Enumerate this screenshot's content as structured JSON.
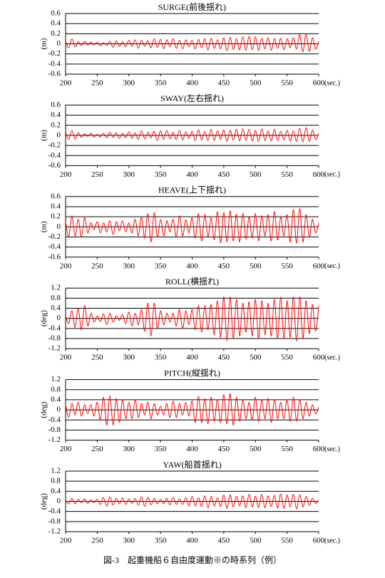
{
  "chart_data": [
    {
      "type": "line",
      "title": "SURGE(前後揺れ)",
      "xlabel": "(sec.)",
      "ylabel": "(m)",
      "xlim": [
        200,
        600
      ],
      "xticks": [
        200,
        250,
        300,
        350,
        400,
        450,
        500,
        550,
        600
      ],
      "ylim": [
        -0.6,
        0.6
      ],
      "yticks": [
        0.6,
        0.4,
        0.2,
        0,
        -0.2,
        -0.4,
        -0.6
      ],
      "grid": true,
      "color": "#ff0000",
      "x": [
        200,
        205,
        210,
        215,
        220,
        225,
        230,
        235,
        240,
        245,
        250,
        255,
        260,
        265,
        270,
        275,
        280,
        285,
        290,
        295,
        300,
        305,
        310,
        315,
        320,
        325,
        330,
        335,
        340,
        345,
        350,
        355,
        360,
        365,
        370,
        375,
        380,
        385,
        390,
        395,
        400,
        405,
        410,
        415,
        420,
        425,
        430,
        435,
        440,
        445,
        450,
        455,
        460,
        465,
        470,
        475,
        480,
        485,
        490,
        495,
        500,
        505,
        510,
        515,
        520,
        525,
        530,
        535,
        540,
        545,
        550,
        555,
        560,
        565,
        570,
        575,
        580,
        585,
        590,
        595,
        600
      ],
      "values": [
        0.05,
        -0.08,
        0.1,
        -0.06,
        0.04,
        -0.03,
        0.05,
        -0.02,
        0.03,
        -0.02,
        0.03,
        -0.04,
        0.02,
        -0.03,
        0.05,
        -0.07,
        0.06,
        -0.05,
        0.04,
        -0.06,
        0.07,
        -0.05,
        0.08,
        -0.09,
        0.07,
        -0.05,
        0.06,
        -0.08,
        0.1,
        -0.07,
        0.09,
        -0.1,
        0.08,
        -0.06,
        0.1,
        -0.09,
        0.07,
        -0.1,
        0.08,
        -0.06,
        0.07,
        -0.1,
        0.09,
        -0.08,
        0.1,
        -0.12,
        0.11,
        -0.09,
        0.08,
        -0.1,
        0.12,
        -0.14,
        0.13,
        -0.11,
        0.1,
        -0.12,
        0.14,
        -0.13,
        0.15,
        -0.12,
        0.14,
        -0.13,
        0.11,
        -0.1,
        0.12,
        -0.13,
        0.1,
        -0.09,
        0.11,
        -0.12,
        0.1,
        -0.08,
        0.12,
        -0.1,
        0.18,
        -0.16,
        0.2,
        -0.15,
        0.12,
        -0.1,
        0.05
      ]
    },
    {
      "type": "line",
      "title": "SWAY(左右揺れ)",
      "xlabel": "(sec.)",
      "ylabel": "(m)",
      "xlim": [
        200,
        600
      ],
      "xticks": [
        200,
        250,
        300,
        350,
        400,
        450,
        500,
        550,
        600
      ],
      "ylim": [
        -0.6,
        0.6
      ],
      "yticks": [
        0.6,
        0.4,
        0.2,
        0,
        -0.2,
        -0.4,
        -0.6
      ],
      "grid": true,
      "color": "#ff0000",
      "x": [
        200,
        205,
        210,
        215,
        220,
        225,
        230,
        235,
        240,
        245,
        250,
        255,
        260,
        265,
        270,
        275,
        280,
        285,
        290,
        295,
        300,
        305,
        310,
        315,
        320,
        325,
        330,
        335,
        340,
        345,
        350,
        355,
        360,
        365,
        370,
        375,
        380,
        385,
        390,
        395,
        400,
        405,
        410,
        415,
        420,
        425,
        430,
        435,
        440,
        445,
        450,
        455,
        460,
        465,
        470,
        475,
        480,
        485,
        490,
        495,
        500,
        505,
        510,
        515,
        520,
        525,
        530,
        535,
        540,
        545,
        550,
        555,
        560,
        565,
        570,
        575,
        580,
        585,
        590,
        595,
        600
      ],
      "values": [
        0.06,
        -0.08,
        0.1,
        -0.07,
        0.05,
        -0.04,
        0.03,
        -0.02,
        0.04,
        -0.03,
        0.02,
        -0.03,
        0.04,
        -0.05,
        0.06,
        -0.04,
        0.05,
        -0.06,
        0.04,
        -0.05,
        0.07,
        -0.06,
        0.05,
        -0.08,
        0.09,
        -0.07,
        0.06,
        -0.05,
        0.08,
        -0.1,
        0.09,
        -0.08,
        0.1,
        -0.07,
        0.06,
        -0.08,
        0.1,
        -0.09,
        0.07,
        -0.06,
        0.08,
        -0.1,
        0.11,
        -0.09,
        0.08,
        -0.1,
        0.12,
        -0.1,
        0.09,
        -0.08,
        0.11,
        -0.12,
        0.1,
        -0.09,
        0.12,
        -0.11,
        0.13,
        -0.1,
        0.12,
        -0.11,
        0.1,
        -0.12,
        0.13,
        -0.1,
        0.09,
        -0.11,
        0.12,
        -0.1,
        0.08,
        -0.09,
        0.1,
        -0.11,
        0.09,
        -0.12,
        0.14,
        -0.13,
        0.15,
        -0.12,
        0.1,
        -0.08,
        0.04
      ]
    },
    {
      "type": "line",
      "title": "HEAVE(上下揺れ)",
      "xlabel": "(sec.)",
      "ylabel": "(m)",
      "xlim": [
        200,
        600
      ],
      "xticks": [
        200,
        250,
        300,
        350,
        400,
        450,
        500,
        550,
        600
      ],
      "ylim": [
        -0.6,
        0.6
      ],
      "yticks": [
        0.6,
        0.4,
        0.2,
        0,
        -0.2,
        -0.4,
        -0.6
      ],
      "grid": true,
      "color": "#ff0000",
      "x": [
        200,
        205,
        210,
        215,
        220,
        225,
        230,
        235,
        240,
        245,
        250,
        255,
        260,
        265,
        270,
        275,
        280,
        285,
        290,
        295,
        300,
        305,
        310,
        315,
        320,
        325,
        330,
        335,
        340,
        345,
        350,
        355,
        360,
        365,
        370,
        375,
        380,
        385,
        390,
        395,
        400,
        405,
        410,
        415,
        420,
        425,
        430,
        435,
        440,
        445,
        450,
        455,
        460,
        465,
        470,
        475,
        480,
        485,
        490,
        495,
        500,
        505,
        510,
        515,
        520,
        525,
        530,
        535,
        540,
        545,
        550,
        555,
        560,
        565,
        570,
        575,
        580,
        585,
        590,
        595,
        600
      ],
      "values": [
        0.1,
        -0.2,
        0.22,
        -0.18,
        0.15,
        -0.2,
        0.18,
        -0.12,
        0.08,
        -0.06,
        0.1,
        -0.12,
        0.08,
        -0.1,
        0.12,
        -0.15,
        0.1,
        -0.08,
        0.12,
        -0.1,
        0.08,
        -0.12,
        0.15,
        -0.18,
        0.2,
        -0.22,
        0.26,
        -0.3,
        0.28,
        -0.2,
        0.15,
        -0.18,
        0.12,
        -0.1,
        0.15,
        -0.2,
        0.22,
        -0.18,
        0.14,
        -0.12,
        0.18,
        -0.22,
        0.26,
        -0.28,
        0.24,
        -0.2,
        0.18,
        -0.25,
        0.3,
        -0.32,
        0.28,
        -0.3,
        0.32,
        -0.28,
        0.25,
        -0.3,
        0.27,
        -0.24,
        0.2,
        -0.22,
        0.26,
        -0.28,
        0.22,
        -0.18,
        0.24,
        -0.28,
        0.3,
        -0.26,
        0.2,
        -0.18,
        0.24,
        -0.3,
        0.34,
        -0.32,
        0.36,
        -0.3,
        0.24,
        -0.2,
        0.15,
        -0.12,
        0.08
      ]
    },
    {
      "type": "line",
      "title": "ROLL(横揺れ)",
      "xlabel": "(sec.)",
      "ylabel": "(deg)",
      "xlim": [
        200,
        600
      ],
      "xticks": [
        200,
        250,
        300,
        350,
        400,
        450,
        500,
        550,
        600
      ],
      "ylim": [
        -1.2,
        1.2
      ],
      "yticks": [
        1.2,
        0.8,
        0.4,
        0,
        -0.4,
        -0.8,
        -1.2
      ],
      "grid": true,
      "color": "#ff0000",
      "x": [
        200,
        205,
        210,
        215,
        220,
        225,
        230,
        235,
        240,
        245,
        250,
        255,
        260,
        265,
        270,
        275,
        280,
        285,
        290,
        295,
        300,
        305,
        310,
        315,
        320,
        325,
        330,
        335,
        340,
        345,
        350,
        355,
        360,
        365,
        370,
        375,
        380,
        385,
        390,
        395,
        400,
        405,
        410,
        415,
        420,
        425,
        430,
        435,
        440,
        445,
        450,
        455,
        460,
        465,
        470,
        475,
        480,
        485,
        490,
        495,
        500,
        505,
        510,
        515,
        520,
        525,
        530,
        535,
        540,
        545,
        550,
        555,
        560,
        565,
        570,
        575,
        580,
        585,
        590,
        595,
        600
      ],
      "values": [
        0.1,
        -0.2,
        0.3,
        -0.35,
        0.4,
        -0.45,
        0.5,
        -0.3,
        0.2,
        -0.15,
        0.1,
        -0.12,
        0.18,
        -0.25,
        0.2,
        -0.15,
        0.1,
        -0.08,
        0.15,
        -0.2,
        0.25,
        -0.3,
        0.2,
        -0.25,
        0.35,
        -0.5,
        0.6,
        -0.7,
        0.6,
        -0.4,
        0.3,
        -0.25,
        0.2,
        -0.15,
        0.2,
        -0.3,
        0.35,
        -0.4,
        0.3,
        -0.25,
        0.35,
        -0.45,
        0.5,
        -0.55,
        0.5,
        -0.45,
        0.55,
        -0.65,
        0.7,
        -0.75,
        0.85,
        -0.9,
        0.85,
        -0.8,
        0.75,
        -0.7,
        0.6,
        -0.55,
        0.65,
        -0.7,
        0.75,
        -0.8,
        0.7,
        -0.65,
        0.6,
        -0.7,
        0.75,
        -0.8,
        0.85,
        -0.8,
        0.7,
        -0.75,
        0.85,
        -0.9,
        0.85,
        -0.8,
        0.7,
        -0.6,
        0.55,
        -0.5,
        0.5
      ]
    },
    {
      "type": "line",
      "title": "PITCH(縦揺れ)",
      "xlabel": "(sec.)",
      "ylabel": "(deg)",
      "xlim": [
        200,
        600
      ],
      "xticks": [
        200,
        250,
        300,
        350,
        400,
        450,
        500,
        550,
        600
      ],
      "ylim": [
        -1.2,
        1.2
      ],
      "yticks": [
        1.2,
        0.8,
        0.4,
        0,
        -0.4,
        -0.8,
        -1.2
      ],
      "grid": true,
      "color": "#ff0000",
      "x": [
        200,
        205,
        210,
        215,
        220,
        225,
        230,
        235,
        240,
        245,
        250,
        255,
        260,
        265,
        270,
        275,
        280,
        285,
        290,
        295,
        300,
        305,
        310,
        315,
        320,
        325,
        330,
        335,
        340,
        345,
        350,
        355,
        360,
        365,
        370,
        375,
        380,
        385,
        390,
        395,
        400,
        405,
        410,
        415,
        420,
        425,
        430,
        435,
        440,
        445,
        450,
        455,
        460,
        465,
        470,
        475,
        480,
        485,
        490,
        495,
        500,
        505,
        510,
        515,
        520,
        525,
        530,
        535,
        540,
        545,
        550,
        555,
        560,
        565,
        570,
        575,
        580,
        585,
        590,
        595,
        600
      ],
      "values": [
        0.2,
        -0.3,
        0.25,
        -0.2,
        0.3,
        -0.25,
        0.2,
        -0.15,
        0.2,
        -0.25,
        0.3,
        -0.4,
        0.5,
        -0.6,
        0.55,
        -0.6,
        0.45,
        -0.5,
        0.4,
        -0.35,
        0.3,
        -0.35,
        0.4,
        -0.3,
        0.25,
        -0.2,
        0.3,
        -0.35,
        0.25,
        -0.2,
        0.15,
        -0.2,
        0.25,
        -0.3,
        0.35,
        -0.3,
        0.25,
        -0.2,
        0.3,
        -0.25,
        0.35,
        -0.5,
        0.55,
        -0.5,
        0.45,
        -0.55,
        0.5,
        -0.45,
        0.4,
        -0.5,
        0.6,
        -0.55,
        0.65,
        -0.6,
        0.5,
        -0.45,
        0.4,
        -0.35,
        0.3,
        -0.4,
        0.5,
        -0.45,
        0.4,
        -0.35,
        0.45,
        -0.5,
        0.4,
        -0.35,
        0.3,
        -0.35,
        0.4,
        -0.45,
        0.5,
        -0.45,
        0.4,
        -0.35,
        0.3,
        -0.25,
        0.2,
        -0.15,
        0.1
      ]
    },
    {
      "type": "line",
      "title": "YAW(船首揺れ)",
      "xlabel": "(sec.)",
      "ylabel": "(deg)",
      "xlim": [
        200,
        600
      ],
      "xticks": [
        200,
        250,
        300,
        350,
        400,
        450,
        500,
        550,
        600
      ],
      "ylim": [
        -1.2,
        1.2
      ],
      "yticks": [
        1.2,
        0.8,
        0.4,
        0,
        -0.4,
        -0.8,
        -1.2
      ],
      "grid": true,
      "color": "#ff0000",
      "x": [
        200,
        205,
        210,
        215,
        220,
        225,
        230,
        235,
        240,
        245,
        250,
        255,
        260,
        265,
        270,
        275,
        280,
        285,
        290,
        295,
        300,
        305,
        310,
        315,
        320,
        325,
        330,
        335,
        340,
        345,
        350,
        355,
        360,
        365,
        370,
        375,
        380,
        385,
        390,
        395,
        400,
        405,
        410,
        415,
        420,
        425,
        430,
        435,
        440,
        445,
        450,
        455,
        460,
        465,
        470,
        475,
        480,
        485,
        490,
        495,
        500,
        505,
        510,
        515,
        520,
        525,
        530,
        535,
        540,
        545,
        550,
        555,
        560,
        565,
        570,
        575,
        580,
        585,
        590,
        595,
        600
      ],
      "values": [
        0.05,
        -0.1,
        0.12,
        -0.1,
        0.08,
        -0.06,
        0.1,
        -0.08,
        0.06,
        -0.05,
        0.08,
        -0.12,
        0.15,
        -0.2,
        0.18,
        -0.15,
        0.12,
        -0.1,
        0.14,
        -0.12,
        0.1,
        -0.08,
        0.12,
        -0.15,
        0.18,
        -0.2,
        0.16,
        -0.14,
        0.12,
        -0.1,
        0.08,
        -0.1,
        0.12,
        -0.14,
        0.16,
        -0.12,
        0.1,
        -0.12,
        0.15,
        -0.18,
        0.2,
        -0.18,
        0.15,
        -0.2,
        0.22,
        -0.25,
        0.2,
        -0.18,
        0.15,
        -0.2,
        0.25,
        -0.28,
        0.26,
        -0.22,
        0.2,
        -0.18,
        0.22,
        -0.25,
        0.28,
        -0.22,
        0.2,
        -0.24,
        0.28,
        -0.25,
        0.22,
        -0.2,
        0.24,
        -0.26,
        0.3,
        -0.28,
        0.25,
        -0.22,
        0.28,
        -0.3,
        0.26,
        -0.22,
        0.2,
        -0.15,
        0.12,
        -0.08,
        0.05
      ]
    }
  ],
  "caption": "図-3　起重機船６自由度運動※の時系列（例）"
}
